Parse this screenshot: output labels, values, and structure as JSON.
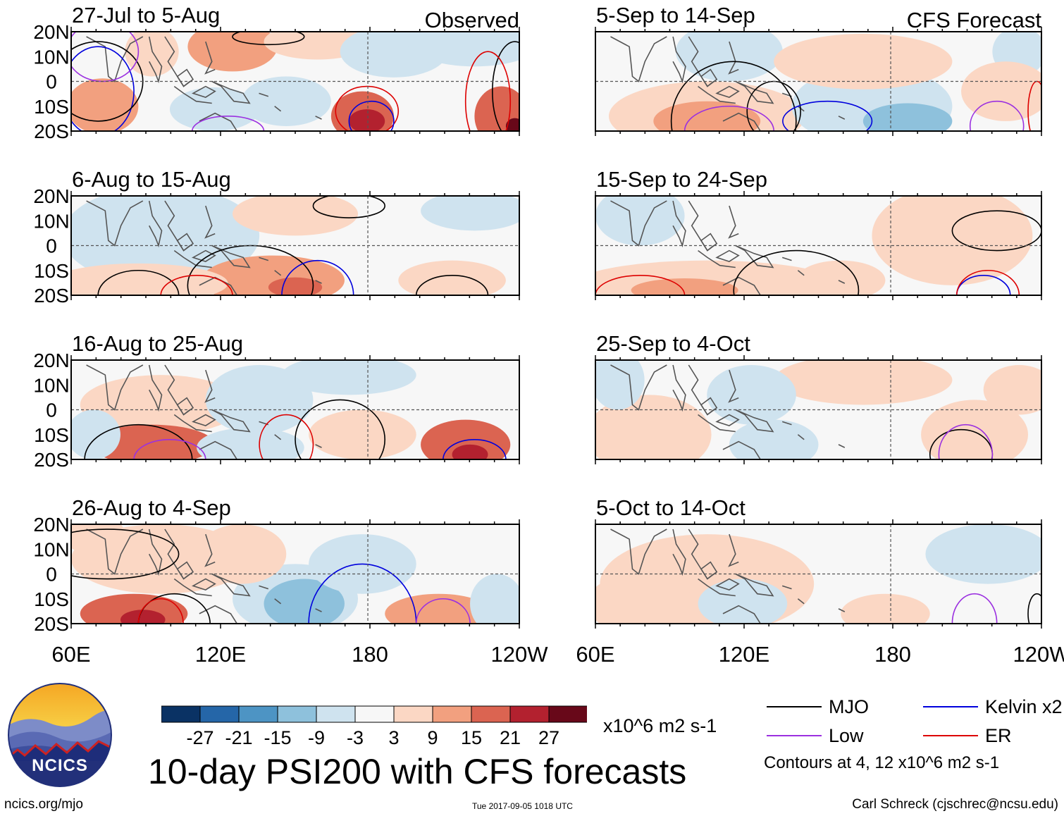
{
  "chart_data": {
    "type": "heatmap",
    "title": "10-day PSI200 with CFS forecasts",
    "variable": "PSI200",
    "units": "x10^6 m2 s-1",
    "colorbar": {
      "levels": [
        -27,
        -21,
        -15,
        -9,
        -3,
        3,
        9,
        15,
        21,
        27
      ],
      "tick_labels": [
        "-27",
        "-21",
        "-15",
        "-9",
        "-3",
        "3",
        "9",
        "15",
        "21",
        "27"
      ],
      "colors": [
        "#0a3264",
        "#2566a8",
        "#4d94c4",
        "#8ec1dc",
        "#cfe3ef",
        "#f7f7f7",
        "#fbd7c4",
        "#f2a07f",
        "#db6451",
        "#b3212f",
        "#680819"
      ]
    },
    "lon_ticks": [
      "60E",
      "120E",
      "180",
      "120W"
    ],
    "lat_ticks": [
      "20N",
      "10N",
      "0",
      "10S",
      "20S"
    ],
    "column_headers": {
      "observed": "Observed",
      "forecast": "CFS Forecast"
    },
    "panels": [
      {
        "label": "27-Jul to 5-Aug",
        "source": "Observed"
      },
      {
        "label": "6-Aug to 15-Aug",
        "source": "Observed"
      },
      {
        "label": "16-Aug to 25-Aug",
        "source": "Observed"
      },
      {
        "label": "26-Aug to 4-Sep",
        "source": "Observed"
      },
      {
        "label": "5-Sep to 14-Sep",
        "source": "CFS Forecast"
      },
      {
        "label": "15-Sep to 24-Sep",
        "source": "CFS Forecast"
      },
      {
        "label": "25-Sep to 4-Oct",
        "source": "CFS Forecast"
      },
      {
        "label": "5-Oct to 14-Oct",
        "source": "CFS Forecast"
      }
    ],
    "contour_legend": [
      {
        "name": "MJO",
        "color": "#000000"
      },
      {
        "name": "Low",
        "color": "#9b30e0"
      },
      {
        "name": "Kelvin x2",
        "color": "#0000dd"
      },
      {
        "name": "ER",
        "color": "#dd0000"
      }
    ],
    "contour_note": "Contours at 4, 12 x10^6 m2 s-1"
  },
  "footer": {
    "site": "ncics.org/mjo",
    "timestamp": "Tue 2017-09-05 1018 UTC",
    "author": "Carl Schreck (cjschrec@ncsu.edu)",
    "logo_text": "NCICS"
  }
}
